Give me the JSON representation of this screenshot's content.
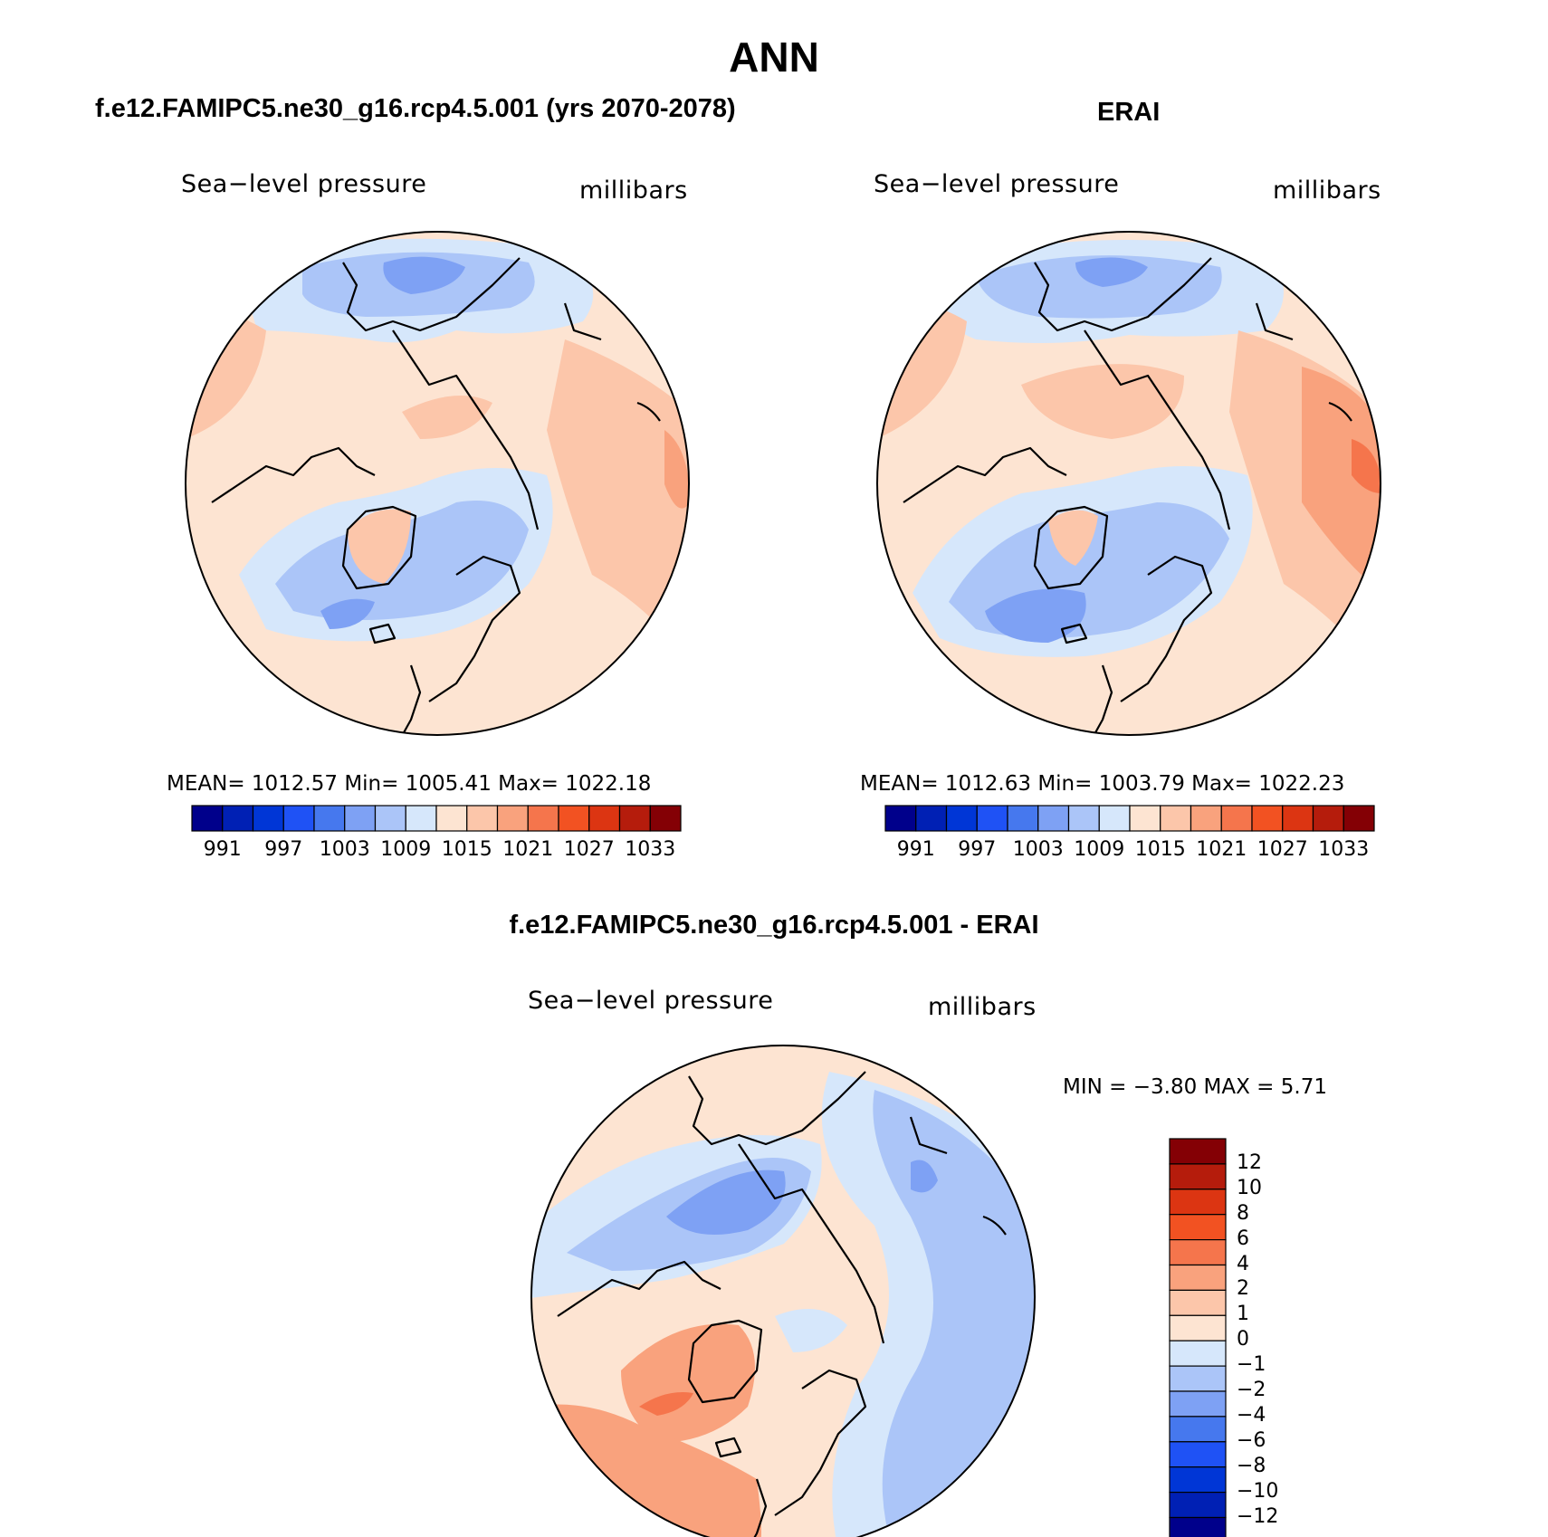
{
  "page_title": "ANN",
  "panels": [
    {
      "title": "f.e12.FAMIPC5.ne30_g16.rcp4.5.001 (yrs 2070-2078)",
      "left_label": "Sea−level pressure",
      "right_label": "millibars",
      "stats": "MEAN= 1012.57   Min= 1005.41   Max= 1022.18"
    },
    {
      "title": "ERAI",
      "left_label": "Sea−level pressure",
      "right_label": "millibars",
      "stats": "MEAN= 1012.63   Min= 1003.79   Max= 1022.23"
    },
    {
      "title": "f.e12.FAMIPC5.ne30_g16.rcp4.5.001 - ERAI",
      "left_label": "Sea−level pressure",
      "right_label": "millibars",
      "stats": "MIN =   −3.80 MAX =    5.71"
    }
  ],
  "abs_colorbar": {
    "colors": [
      "#00008b",
      "#0020b4",
      "#0036d6",
      "#1f52f5",
      "#4678ee",
      "#7ea1f4",
      "#abc5f8",
      "#d6e7fb",
      "#fde4d2",
      "#fcc6aa",
      "#f9a27d",
      "#f5754c",
      "#f25222",
      "#dc3512",
      "#b51c0c",
      "#840005"
    ],
    "labels": [
      "991",
      "997",
      "1003",
      "1009",
      "1015",
      "1021",
      "1027",
      "1033"
    ]
  },
  "diff_colorbar": {
    "colors": [
      "#840005",
      "#b51c0c",
      "#dc3512",
      "#f25222",
      "#f5754c",
      "#f9a27d",
      "#fcc6aa",
      "#fde4d2",
      "#d6e7fb",
      "#abc5f8",
      "#7ea1f4",
      "#4678ee",
      "#1f52f5",
      "#0036d6",
      "#0020b4",
      "#00008b"
    ],
    "labels": [
      "12",
      "10",
      "8",
      "6",
      "4",
      "2",
      "1",
      "0",
      "−1",
      "−2",
      "−4",
      "−6",
      "−8",
      "−10",
      "−12"
    ]
  }
}
